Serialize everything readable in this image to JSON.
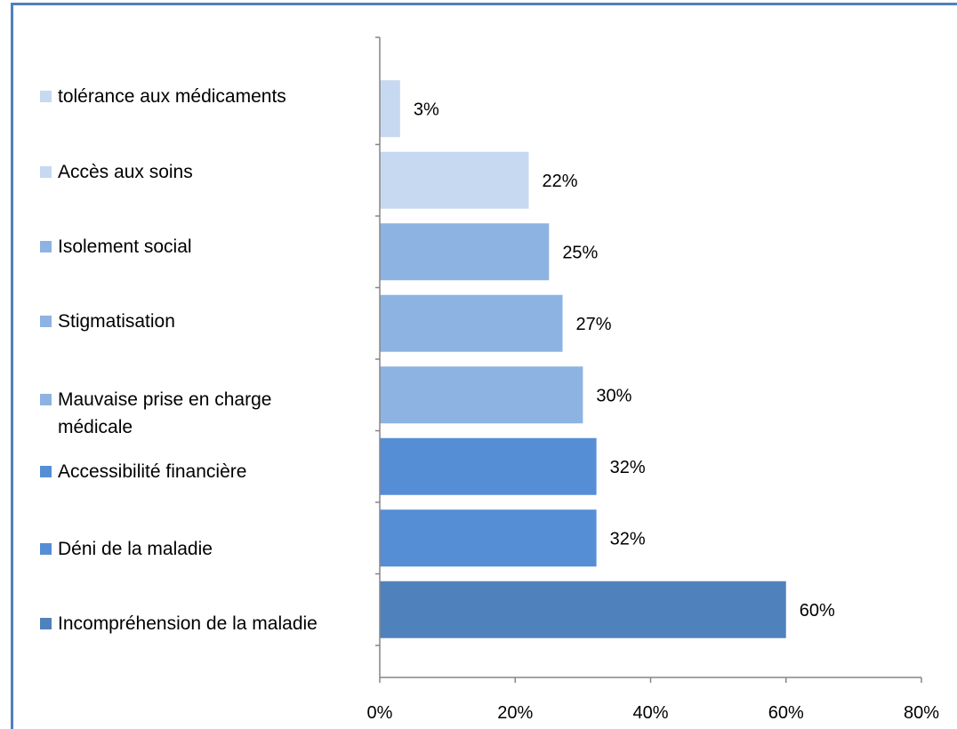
{
  "chart_data": {
    "type": "bar",
    "orientation": "horizontal",
    "categories": [
      "tolérance aux médicaments",
      "Accès aux soins",
      "Isolement social",
      "Stigmatisation",
      "Mauvaise prise en charge médicale",
      "Accessibilité financière",
      "Déni de la maladie",
      "Incompréhension de la maladie"
    ],
    "values": [
      3,
      22,
      25,
      27,
      30,
      32,
      32,
      60
    ],
    "data_labels": [
      "3%",
      "22%",
      "25%",
      "27%",
      "30%",
      "32%",
      "32%",
      "60%"
    ],
    "colors": [
      "#c6d9f1",
      "#c6d9f1",
      "#8db3e2",
      "#8db3e2",
      "#8db3e2",
      "#558ed5",
      "#558ed5",
      "#4f81bd"
    ],
    "xlim": [
      0,
      80
    ],
    "x_ticks": [
      0,
      20,
      40,
      60,
      80
    ],
    "x_tick_labels": [
      "0%",
      "20%",
      "40%",
      "60%",
      "80%"
    ],
    "legend_position": "left",
    "grid": false,
    "title": "",
    "xlabel": "",
    "ylabel": ""
  }
}
